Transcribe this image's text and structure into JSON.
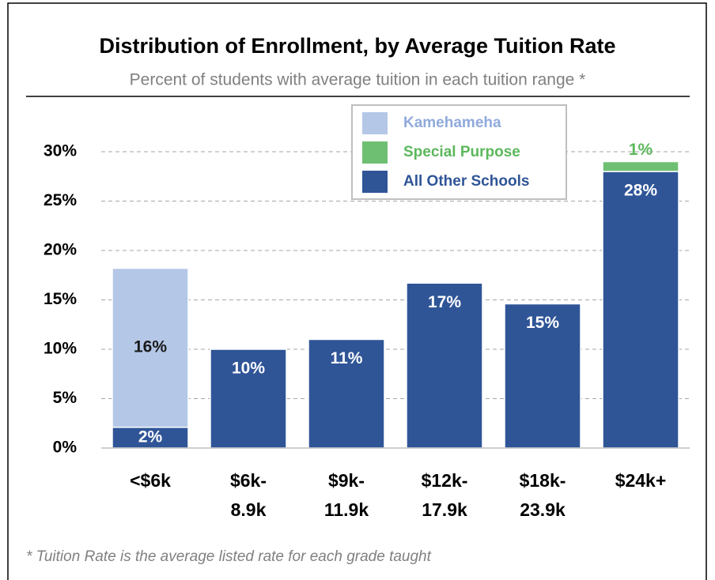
{
  "chart_data": {
    "type": "stacked_bar",
    "title": "Distribution of Enrollment, by Average Tuition Rate",
    "subtitle": "Percent of students with average tuition in each tuition range *",
    "footnote": "* Tuition Rate is the average listed rate for each grade taught",
    "categories": [
      [
        "<$6k"
      ],
      [
        "$6k-",
        "8.9k"
      ],
      [
        "$9k-",
        "11.9k"
      ],
      [
        "$12k-",
        "17.9k"
      ],
      [
        "$18k-",
        "23.9k"
      ],
      [
        "$24k+"
      ]
    ],
    "series": [
      {
        "name": "All Other Schools",
        "color": "#2f5597",
        "label_color": "#2f5597",
        "value_label_color": "#ffffff",
        "values": [
          2.1,
          10.0,
          11.0,
          16.7,
          14.6,
          28.0
        ],
        "value_labels": [
          "2%",
          "10%",
          "11%",
          "17%",
          "15%",
          "28%"
        ]
      },
      {
        "name": "Special Purpose",
        "color": "#6fbf73",
        "label_color": "#5cb85c",
        "value_label_color": "#5cb85c",
        "values": [
          null,
          null,
          null,
          null,
          null,
          1.0
        ],
        "value_labels": [
          null,
          null,
          null,
          null,
          null,
          "1%"
        ]
      },
      {
        "name": "Kamehameha",
        "color": "#b4c7e7",
        "label_color": "#8faadc",
        "value_label_color": "#1a1a1a",
        "values": [
          16.1,
          null,
          null,
          null,
          null,
          null
        ],
        "value_labels": [
          "16%",
          null,
          null,
          null,
          null,
          null
        ]
      }
    ],
    "ylim": [
      0,
      30
    ],
    "yticks": [
      {
        "value": 0,
        "label": "0%"
      },
      {
        "value": 5,
        "label": "5%"
      },
      {
        "value": 10,
        "label": "10%"
      },
      {
        "value": 15,
        "label": "15%"
      },
      {
        "value": 20,
        "label": "20%"
      },
      {
        "value": 25,
        "label": "25%"
      },
      {
        "value": 30,
        "label": "30%"
      }
    ],
    "grid": true,
    "legend": "top-right"
  }
}
